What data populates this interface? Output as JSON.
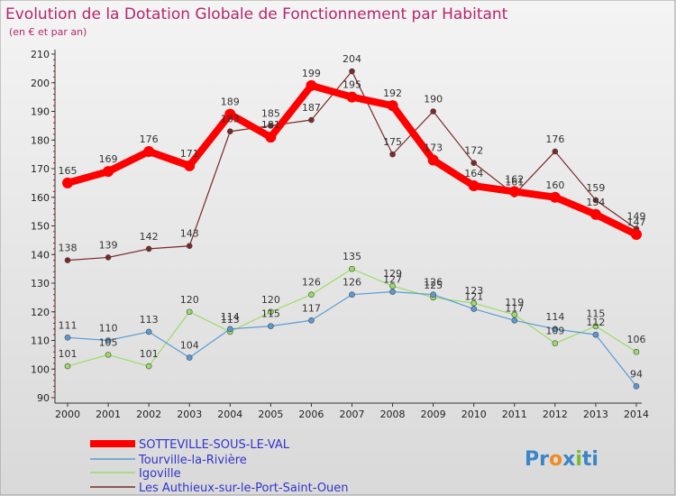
{
  "colors": {
    "background_top": "#f4f4f4",
    "background_bottom": "#d9d9d9",
    "title": "#b5266b",
    "legend_text": "#3333cc",
    "axis_red": "#cc0000"
  },
  "chart_data": {
    "type": "line",
    "title": "Evolution de la Dotation Globale de Fonctionnement par Habitant",
    "subtitle": "(en € et par an)",
    "x": [
      "2000",
      "2001",
      "2002",
      "2003",
      "2004",
      "2005",
      "2006",
      "2007",
      "2008",
      "2009",
      "2010",
      "2011",
      "2012",
      "2013",
      "2014"
    ],
    "ylim": [
      90,
      210
    ],
    "yticks": [
      90,
      100,
      110,
      120,
      130,
      140,
      150,
      160,
      170,
      180,
      190,
      200,
      210
    ],
    "grid": false,
    "legend_position": "bottom-left",
    "series": [
      {
        "name": "SOTTEVILLE-SOUS-LE-VAL",
        "color": "#ff0000",
        "values": [
          165,
          169,
          176,
          171,
          189,
          181,
          199,
          195,
          192,
          173,
          164,
          162,
          160,
          154,
          147
        ]
      },
      {
        "name": "Tourville-la-Rivière",
        "color": "#5b9bd5",
        "values": [
          111,
          110,
          113,
          104,
          114,
          115,
          117,
          126,
          127,
          126,
          121,
          117,
          114,
          112,
          94
        ]
      },
      {
        "name": "Igoville",
        "color": "#99dd66",
        "values": [
          101,
          105,
          101,
          120,
          113,
          120,
          126,
          135,
          129,
          125,
          123,
          119,
          109,
          115,
          106
        ]
      },
      {
        "name": "Les Authieux-sur-le-Port-Saint-Ouen",
        "color": "#7a2a2a",
        "values": [
          138,
          139,
          142,
          143,
          183,
          185,
          187,
          204,
          175,
          190,
          172,
          161,
          176,
          159,
          149
        ]
      }
    ],
    "data_labels": [
      [
        "165",
        "169",
        "176",
        "171",
        "189",
        "181",
        "199",
        "195",
        "192",
        "173",
        "164",
        "162",
        "160",
        "154",
        "147"
      ],
      [
        "111",
        "110",
        "113",
        "104",
        "114",
        "115",
        "117",
        "126",
        "127",
        "126",
        "121",
        "117",
        "114",
        "112",
        "94"
      ],
      [
        "101",
        "105",
        "101",
        "120",
        "113",
        "120",
        "126",
        "135",
        "129",
        "125",
        "123",
        "119",
        "109",
        "115",
        "106"
      ],
      [
        "138",
        "139",
        "142",
        "143",
        "183",
        "185",
        "187",
        "204",
        "175",
        "190",
        "172",
        "161",
        "176",
        "159",
        "149"
      ]
    ]
  },
  "logo": {
    "parts": [
      "Pr",
      "o",
      "x",
      "i",
      "ti"
    ],
    "colors": [
      "#3a86c8",
      "#f08a24",
      "#3a86c8",
      "#79b933",
      "#3a86c8"
    ]
  }
}
